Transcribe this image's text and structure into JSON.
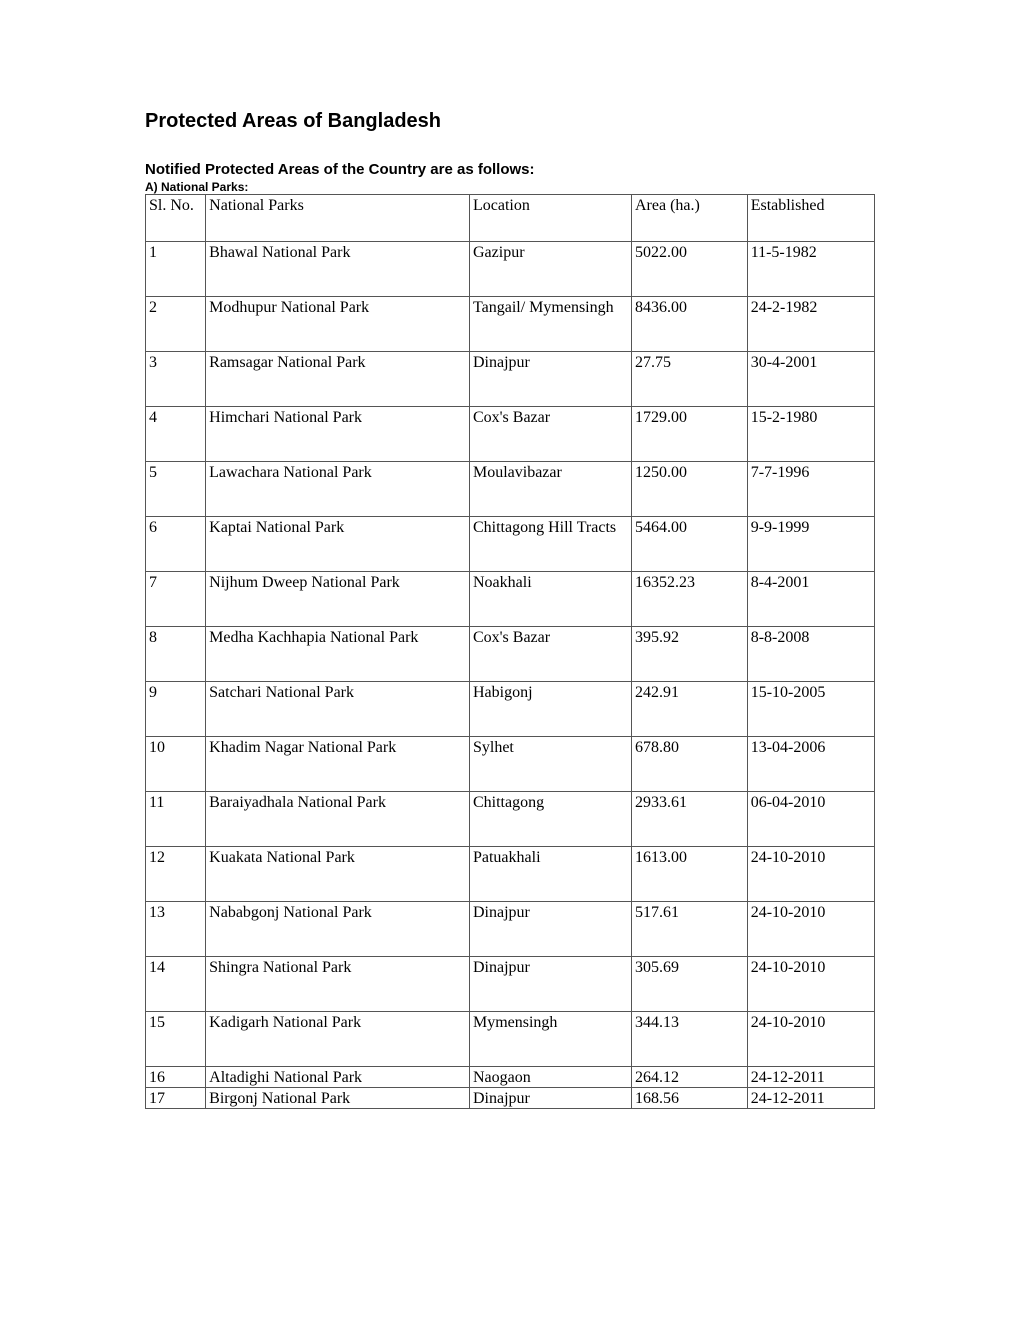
{
  "title": "Protected Areas of Bangladesh",
  "subtitle": "Notified Protected Areas of the Country are as follows:",
  "section_label": "A) National Parks:",
  "table": {
    "columns": [
      "Sl. No.",
      "National Parks",
      "Location",
      "Area (ha.)",
      "Established"
    ],
    "rows": [
      {
        "sl": "1",
        "name": "Bhawal National Park",
        "loc": "Gazipur",
        "area": "5022.00",
        "est": "11-5-1982",
        "cls": "tall"
      },
      {
        "sl": "2",
        "name": "Modhupur National Park",
        "loc": "Tangail/ Mymensingh",
        "area": "8436.00",
        "est": "24-2-1982",
        "cls": "tall2"
      },
      {
        "sl": "3",
        "name": "Ramsagar National Park",
        "loc": "Dinajpur",
        "area": "27.75",
        "est": "30-4-2001",
        "cls": "tall"
      },
      {
        "sl": "4",
        "name": "Himchari National Park",
        "loc": "Cox's Bazar",
        "area": "1729.00",
        "est": "15-2-1980",
        "cls": "tall"
      },
      {
        "sl": "5",
        "name": "Lawachara National Park",
        "loc": "Moulavibazar",
        "area": "1250.00",
        "est": "7-7-1996",
        "cls": "tall"
      },
      {
        "sl": "6",
        "name": "Kaptai National Park",
        "loc": "Chittagong Hill Tracts",
        "area": "5464.00",
        "est": "9-9-1999",
        "cls": "tall2"
      },
      {
        "sl": "7",
        "name": "Nijhum Dweep National Park",
        "loc": "Noakhali",
        "area": "16352.23",
        "est": "8-4-2001",
        "cls": "tall"
      },
      {
        "sl": "8",
        "name": "Medha Kachhapia National Park",
        "loc": "Cox's Bazar",
        "area": "395.92",
        "est": "8-8-2008",
        "cls": "tall"
      },
      {
        "sl": "9",
        "name": "Satchari National Park",
        "loc": "Habigonj",
        "area": "242.91",
        "est": "15-10-2005",
        "cls": "tall"
      },
      {
        "sl": "10",
        "name": "Khadim Nagar National Park",
        "loc": "Sylhet",
        "area": "678.80",
        "est": "13-04-2006",
        "cls": "tall"
      },
      {
        "sl": "11",
        "name": "Baraiyadhala National Park",
        "loc": "Chittagong",
        "area": "2933.61",
        "est": "06-04-2010",
        "cls": "tall"
      },
      {
        "sl": "12",
        "name": "Kuakata National Park",
        "loc": "Patuakhali",
        "area": "1613.00",
        "est": "24-10-2010",
        "cls": "tall"
      },
      {
        "sl": "13",
        "name": "Nababgonj National Park",
        "loc": "Dinajpur",
        "area": "517.61",
        "est": "24-10-2010",
        "cls": "tall"
      },
      {
        "sl": "14",
        "name": "Shingra National Park",
        "loc": "Dinajpur",
        "area": "305.69",
        "est": "24-10-2010",
        "cls": "tall"
      },
      {
        "sl": "15",
        "name": "Kadigarh National Park",
        "loc": "Mymensingh",
        "area": "344.13",
        "est": "24-10-2010",
        "cls": "tall"
      },
      {
        "sl": "16",
        "name": "Altadighi National Park",
        "loc": "Naogaon",
        "area": "264.12",
        "est": "24-12-2011",
        "cls": "short"
      },
      {
        "sl": "17",
        "name": "Birgonj National Park",
        "loc": "Dinajpur",
        "area": "168.56",
        "est": "24-12-2011",
        "cls": "short"
      }
    ]
  }
}
